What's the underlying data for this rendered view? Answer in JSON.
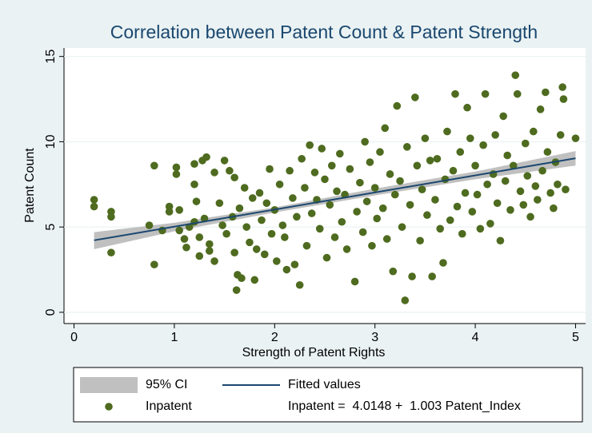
{
  "chart_data": {
    "type": "scatter",
    "title": "Correlation between Patent Count & Patent Strength",
    "xlabel": "Strength of Patent Rights",
    "ylabel": "Patent Count",
    "xlim": [
      -0.1,
      5.1
    ],
    "ylim": [
      -0.66,
      15.5
    ],
    "xticks": [
      0,
      1,
      2,
      3,
      4,
      5
    ],
    "yticks": [
      0,
      5,
      10,
      15
    ],
    "grid": true,
    "legend": "bottom",
    "ci": {
      "name": "95% CI",
      "color": "#c0c0c0",
      "x": [
        0.2,
        1,
        2,
        3,
        4,
        5
      ],
      "lower": [
        3.7,
        4.75,
        5.85,
        6.85,
        7.8,
        8.6
      ],
      "upper": [
        4.7,
        5.25,
        6.15,
        7.25,
        8.25,
        9.45
      ]
    },
    "fit": {
      "name": "Fitted values",
      "label": "Inpatent =  4.0148 +  1.003 Patent_Index",
      "color": "#1a476f",
      "x": [
        0.2,
        5.0
      ],
      "values": [
        4.22,
        9.03
      ]
    },
    "series": [
      {
        "name": "Inpatent",
        "color": "#4e6b1f",
        "x": [
          0.2,
          0.2,
          0.37,
          0.37,
          0.37,
          0.75,
          0.8,
          0.8,
          0.88,
          0.95,
          0.95,
          1.02,
          1.02,
          1.05,
          1.05,
          1.1,
          1.12,
          1.15,
          1.2,
          1.2,
          1.2,
          1.22,
          1.25,
          1.25,
          1.28,
          1.3,
          1.32,
          1.35,
          1.35,
          1.4,
          1.4,
          1.45,
          1.48,
          1.5,
          1.52,
          1.55,
          1.58,
          1.6,
          1.6,
          1.62,
          1.63,
          1.65,
          1.67,
          1.7,
          1.72,
          1.75,
          1.78,
          1.8,
          1.82,
          1.85,
          1.87,
          1.9,
          1.92,
          1.95,
          1.97,
          2.0,
          2.02,
          2.05,
          2.08,
          2.1,
          2.12,
          2.15,
          2.18,
          2.2,
          2.22,
          2.25,
          2.27,
          2.3,
          2.32,
          2.35,
          2.37,
          2.4,
          2.42,
          2.45,
          2.47,
          2.5,
          2.52,
          2.55,
          2.57,
          2.6,
          2.62,
          2.65,
          2.67,
          2.7,
          2.72,
          2.75,
          2.8,
          2.82,
          2.85,
          2.88,
          2.9,
          2.92,
          2.95,
          2.97,
          3.0,
          3.02,
          3.05,
          3.08,
          3.1,
          3.12,
          3.15,
          3.18,
          3.2,
          3.22,
          3.25,
          3.27,
          3.3,
          3.32,
          3.35,
          3.37,
          3.4,
          3.42,
          3.45,
          3.47,
          3.5,
          3.52,
          3.55,
          3.57,
          3.6,
          3.62,
          3.65,
          3.68,
          3.7,
          3.72,
          3.75,
          3.78,
          3.8,
          3.82,
          3.85,
          3.87,
          3.9,
          3.92,
          3.95,
          3.97,
          4.0,
          4.02,
          4.05,
          4.08,
          4.1,
          4.12,
          4.15,
          4.18,
          4.2,
          4.22,
          4.25,
          4.28,
          4.3,
          4.32,
          4.35,
          4.38,
          4.4,
          4.42,
          4.45,
          4.48,
          4.5,
          4.52,
          4.55,
          4.58,
          4.6,
          4.62,
          4.65,
          4.67,
          4.7,
          4.72,
          4.75,
          4.78,
          4.8,
          4.82,
          4.85,
          4.87,
          4.88,
          4.9,
          5.0
        ],
        "values": [
          6.6,
          6.2,
          5.9,
          5.6,
          3.5,
          5.1,
          8.6,
          2.8,
          4.8,
          6.2,
          5.9,
          8.5,
          8.1,
          6.0,
          4.8,
          4.3,
          3.8,
          5.0,
          5.3,
          7.5,
          8.7,
          6.5,
          4.4,
          3.3,
          8.9,
          5.5,
          9.1,
          4.0,
          3.6,
          3.0,
          8.2,
          6.4,
          5.1,
          8.9,
          4.6,
          8.3,
          5.6,
          7.9,
          3.5,
          1.3,
          2.2,
          6.1,
          2.0,
          7.3,
          5.0,
          4.1,
          6.7,
          1.9,
          3.7,
          7.0,
          5.4,
          3.4,
          6.4,
          8.4,
          4.6,
          6.0,
          3.0,
          7.5,
          5.1,
          4.4,
          2.5,
          8.3,
          6.7,
          2.8,
          5.6,
          1.6,
          9.0,
          7.3,
          3.9,
          9.8,
          5.8,
          8.2,
          6.6,
          4.9,
          9.6,
          7.8,
          3.2,
          6.3,
          8.6,
          4.4,
          7.1,
          9.3,
          5.3,
          6.9,
          3.7,
          8.4,
          1.8,
          5.9,
          7.6,
          4.7,
          10.0,
          6.5,
          8.8,
          3.9,
          7.3,
          5.5,
          9.4,
          6.1,
          10.8,
          4.3,
          8.1,
          2.4,
          6.9,
          12.1,
          7.7,
          5.0,
          0.7,
          9.7,
          6.3,
          2.1,
          12.6,
          8.6,
          4.2,
          7.2,
          10.2,
          5.7,
          8.9,
          2.1,
          6.6,
          9.0,
          4.9,
          2.9,
          7.8,
          10.6,
          5.4,
          8.3,
          12.8,
          6.2,
          9.4,
          4.6,
          7.0,
          12.0,
          10.2,
          5.9,
          8.6,
          6.9,
          4.9,
          9.8,
          12.8,
          7.5,
          5.2,
          8.1,
          10.4,
          6.4,
          4.2,
          11.5,
          7.7,
          9.2,
          6.0,
          8.6,
          13.9,
          12.8,
          7.1,
          6.3,
          9.9,
          8.0,
          5.6,
          10.6,
          7.4,
          6.6,
          11.9,
          8.3,
          12.9,
          9.4,
          7.0,
          6.1,
          8.8,
          7.5,
          10.4,
          13.2,
          12.5,
          7.2,
          10.2
        ]
      }
    ]
  }
}
